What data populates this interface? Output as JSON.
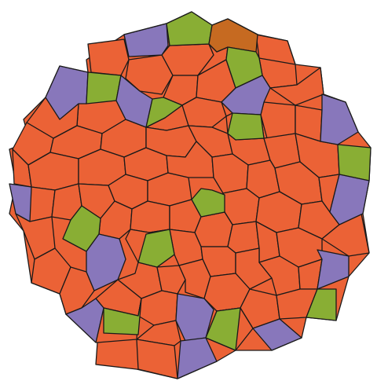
{
  "game": {
    "kind": "voronoi-tile-board",
    "colors": {
      "orange": "#eb6236",
      "purple": "#8877bb",
      "green": "#89ae34",
      "brown": "#c66a21",
      "outline": "#1a1a1a",
      "background": "#ffffff"
    },
    "special_tiles": [
      {
        "name": "tile-purple-top-left",
        "color": "purple"
      },
      {
        "name": "tile-green-top",
        "color": "green"
      },
      {
        "name": "tile-brown-top",
        "color": "brown"
      },
      {
        "name": "tile-purple-upper-left",
        "color": "purple"
      },
      {
        "name": "tile-green-upper-left",
        "color": "green"
      },
      {
        "name": "tile-green-upper-right",
        "color": "green"
      },
      {
        "name": "tile-purple-upper-left-inner",
        "color": "purple"
      },
      {
        "name": "tile-green-upper-left-inner",
        "color": "green"
      },
      {
        "name": "tile-purple-upper-right",
        "color": "purple"
      },
      {
        "name": "tile-green-upper-right-inner",
        "color": "green"
      },
      {
        "name": "tile-purple-right-edge-top",
        "color": "purple"
      },
      {
        "name": "tile-green-right-edge",
        "color": "green"
      },
      {
        "name": "tile-purple-right-edge",
        "color": "purple"
      },
      {
        "name": "tile-purple-left-edge",
        "color": "purple"
      },
      {
        "name": "tile-green-center",
        "color": "green"
      },
      {
        "name": "tile-green-left-mid",
        "color": "green"
      },
      {
        "name": "tile-purple-left-mid",
        "color": "purple"
      },
      {
        "name": "tile-green-center-lower",
        "color": "green"
      },
      {
        "name": "tile-purple-right-lower",
        "color": "purple"
      },
      {
        "name": "tile-green-right-lower",
        "color": "green"
      },
      {
        "name": "tile-purple-bottom-left",
        "color": "purple"
      },
      {
        "name": "tile-green-bottom-left",
        "color": "green"
      },
      {
        "name": "tile-purple-bottom-center",
        "color": "purple"
      },
      {
        "name": "tile-green-bottom",
        "color": "green"
      },
      {
        "name": "tile-purple-bottom-right",
        "color": "purple"
      },
      {
        "name": "tile-purple-bottom",
        "color": "purple"
      }
    ]
  }
}
